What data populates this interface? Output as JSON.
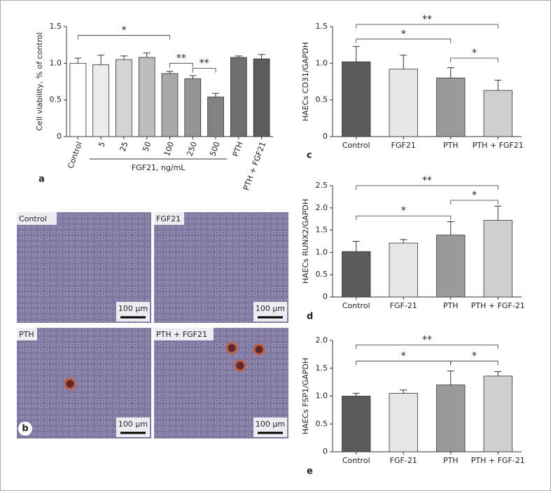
{
  "chart_data": [
    {
      "type": "bar",
      "panel": "a",
      "ylabel": "Cell viability, % of control",
      "categories": [
        "Control",
        "5",
        "25",
        "50",
        "100",
        "250",
        "500",
        "PTH",
        "PTH + FGF21"
      ],
      "values": [
        1.0,
        0.98,
        1.05,
        1.08,
        0.86,
        0.79,
        0.54,
        1.08,
        1.06
      ],
      "errors": [
        0.07,
        0.13,
        0.05,
        0.06,
        0.03,
        0.04,
        0.05,
        0.02,
        0.06
      ],
      "colors": [
        "#ffffff",
        "#ececec",
        "#d4d4d4",
        "#bdbdbd",
        "#a8a8a8",
        "#959595",
        "#828282",
        "#6e6e6e",
        "#5c5c5c"
      ],
      "ylim": [
        0,
        1.5
      ],
      "yticks": [
        0,
        0.5,
        {
          "value": 1,
          "label": "1.0"
        },
        1.5
      ],
      "xlabel": "FGF21, ng/mL",
      "xlabel_span": [
        "5",
        "500"
      ],
      "annotations": [
        {
          "text": "*",
          "between": [
            "Control",
            "100"
          ]
        },
        {
          "text": "**",
          "between": [
            "100",
            "250"
          ]
        },
        {
          "text": "**",
          "between": [
            "250",
            "500"
          ]
        }
      ]
    },
    {
      "type": "bar",
      "panel": "c",
      "ylabel": "HAECs CD31/GAPDH",
      "categories": [
        "Control",
        "FGF21",
        "PTH",
        "PTH + FGF21"
      ],
      "values": [
        1.02,
        0.92,
        0.8,
        0.63
      ],
      "errors": [
        0.21,
        0.19,
        0.14,
        0.14
      ],
      "colors": [
        "#5a5a5a",
        "#e6e6e6",
        "#9a9a9a",
        "#cfcfcf"
      ],
      "ylim": [
        0,
        1.5
      ],
      "yticks": [
        0,
        0.5,
        {
          "value": 1,
          "label": "1.0"
        },
        1.5
      ],
      "annotations": [
        {
          "text": "**",
          "between": [
            "Control",
            "PTH + FGF21"
          ]
        },
        {
          "text": "*",
          "between": [
            "Control",
            "PTH"
          ]
        },
        {
          "text": "*",
          "between": [
            "PTH",
            "PTH + FGF21"
          ]
        }
      ]
    },
    {
      "type": "bar",
      "panel": "d",
      "ylabel": "HAECs RUNX2/GAPDH",
      "categories": [
        "Control",
        "FGF-21",
        "PTH",
        "PTH + FGF-21"
      ],
      "values": [
        1.02,
        1.21,
        1.39,
        1.72
      ],
      "errors": [
        0.23,
        0.08,
        0.3,
        0.32
      ],
      "colors": [
        "#5a5a5a",
        "#e6e6e6",
        "#9a9a9a",
        "#cfcfcf"
      ],
      "ylim": [
        0,
        2.5
      ],
      "yticks": [
        0,
        0.5,
        {
          "value": 1,
          "label": "1.0"
        },
        1.5,
        {
          "value": 2,
          "label": "2.0"
        },
        2.5
      ],
      "annotations": [
        {
          "text": "**",
          "between": [
            "Control",
            "PTH + FGF-21"
          ]
        },
        {
          "text": "*",
          "between": [
            "Control",
            "PTH"
          ]
        },
        {
          "text": "*",
          "between": [
            "PTH",
            "PTH + FGF-21"
          ]
        }
      ]
    },
    {
      "type": "bar",
      "panel": "e",
      "ylabel": "HAECs FSP1/GAPDH",
      "categories": [
        "Control",
        "FGF-21",
        "PTH",
        "PTH + FGF-21"
      ],
      "values": [
        1.0,
        1.05,
        1.2,
        1.36
      ],
      "errors": [
        0.05,
        0.06,
        0.25,
        0.08
      ],
      "colors": [
        "#5a5a5a",
        "#e6e6e6",
        "#9a9a9a",
        "#cfcfcf"
      ],
      "ylim": [
        0,
        2
      ],
      "yticks": [
        0,
        0.5,
        {
          "value": 1,
          "label": "1.0"
        },
        1.5,
        {
          "value": 2,
          "label": "2.0"
        }
      ],
      "annotations": [
        {
          "text": "**",
          "between": [
            "Control",
            "PTH + FGF-21"
          ]
        },
        {
          "text": "*",
          "between": [
            "Control",
            "PTH"
          ]
        },
        {
          "text": "*",
          "between": [
            "PTH",
            "PTH + FGF-21"
          ]
        }
      ]
    }
  ],
  "panel_b": {
    "panel": "b",
    "images": [
      {
        "label": "Control",
        "scale": "100 µm"
      },
      {
        "label": "FGF21",
        "scale": "100 µm"
      },
      {
        "label": "PTH",
        "scale": "100 µm"
      },
      {
        "label": "PTH + FGF21",
        "scale": "100 µm"
      }
    ]
  }
}
